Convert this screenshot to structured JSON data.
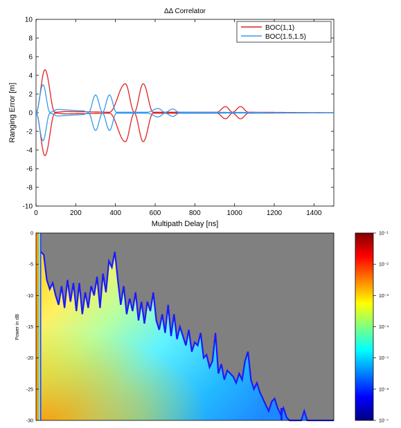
{
  "chart_data": [
    {
      "type": "line",
      "title": "ΔΔ Correlator",
      "xlabel": "Multipath Delay [ns]",
      "ylabel": "Ranging Error [m]",
      "xlim": [
        0,
        1500
      ],
      "ylim": [
        -10,
        10
      ],
      "xticks": [
        0,
        200,
        400,
        600,
        800,
        1000,
        1200,
        1400
      ],
      "yticks": [
        -10,
        -8,
        -6,
        -4,
        -2,
        0,
        2,
        4,
        6,
        8,
        10
      ],
      "grid": false,
      "legend_position": "top-right",
      "series": [
        {
          "name": "BOC(1,1)",
          "color": "#e02020",
          "envelope": [
            {
              "x": 0,
              "y": 0
            },
            {
              "x": 45,
              "y": 4.6
            },
            {
              "x": 95,
              "y": 0.05
            },
            {
              "x": 150,
              "y": 0.12
            },
            {
              "x": 240,
              "y": 0.1
            },
            {
              "x": 300,
              "y": 0.08
            },
            {
              "x": 370,
              "y": 0.05
            },
            {
              "x": 450,
              "y": 3.1
            },
            {
              "x": 495,
              "y": 0.05
            },
            {
              "x": 540,
              "y": 3.1
            },
            {
              "x": 590,
              "y": 0.05
            },
            {
              "x": 650,
              "y": 0.05
            },
            {
              "x": 910,
              "y": 0.05
            },
            {
              "x": 955,
              "y": 0.65
            },
            {
              "x": 990,
              "y": 0.05
            },
            {
              "x": 1030,
              "y": 0.65
            },
            {
              "x": 1070,
              "y": 0.05
            },
            {
              "x": 1500,
              "y": 0
            }
          ]
        },
        {
          "name": "BOC(1.5,1.5)",
          "color": "#3399ee",
          "envelope": [
            {
              "x": 0,
              "y": 0
            },
            {
              "x": 35,
              "y": 3.0
            },
            {
              "x": 70,
              "y": 0.05
            },
            {
              "x": 110,
              "y": 0.35
            },
            {
              "x": 150,
              "y": 0.3
            },
            {
              "x": 190,
              "y": 0.25
            },
            {
              "x": 235,
              "y": 0.2
            },
            {
              "x": 265,
              "y": 0.05
            },
            {
              "x": 300,
              "y": 1.9
            },
            {
              "x": 335,
              "y": 0.05
            },
            {
              "x": 370,
              "y": 1.9
            },
            {
              "x": 405,
              "y": 0.05
            },
            {
              "x": 560,
              "y": 0.05
            },
            {
              "x": 615,
              "y": 0.45
            },
            {
              "x": 650,
              "y": 0.05
            },
            {
              "x": 690,
              "y": 0.4
            },
            {
              "x": 720,
              "y": 0.05
            },
            {
              "x": 1500,
              "y": 0
            }
          ]
        }
      ]
    },
    {
      "type": "heatmap",
      "ylabel": "Power in dB",
      "ylim": [
        -30,
        0
      ],
      "yticks": [
        0,
        -5,
        -10,
        -15,
        -20,
        -25,
        -30
      ],
      "background_color": "#808080",
      "edge_color": "#1a1aff",
      "top_edge_db": [
        -3.0,
        -3.5,
        -7.5,
        -9.0,
        -8.0,
        -10.0,
        -11.5,
        -8.5,
        -12.0,
        -7.5,
        -11.0,
        -8.0,
        -12.5,
        -8.0,
        -13.0,
        -9.5,
        -12.0,
        -8.5,
        -10.0,
        -7.0,
        -12.0,
        -6.5,
        -9.5,
        -4.5,
        -5.5,
        -3.0,
        -7.5,
        -11.5,
        -8.5,
        -13.0,
        -10.5,
        -12.5,
        -9.5,
        -14.0,
        -11.0,
        -14.5,
        -11.0,
        -12.5,
        -9.5,
        -14.0,
        -15.5,
        -13.0,
        -16.0,
        -11.5,
        -16.5,
        -13.0,
        -17.0,
        -15.0,
        -16.5,
        -18.0,
        -15.5,
        -19.0,
        -17.5,
        -18.0,
        -16.0,
        -20.0,
        -19.5,
        -21.5,
        -20.5,
        -16.0,
        -22.5,
        -21.0,
        -23.5,
        -22.0,
        -22.5,
        -23.0,
        -24.0,
        -22.5,
        -23.5,
        -20.5,
        -19.0,
        -23.5,
        -25.0,
        -24.0,
        -25.5,
        -26.5,
        -27.5,
        -28.5,
        -27.0,
        -26.5,
        -28.0,
        -29.0,
        -28.0,
        -29.5,
        -30.0,
        -30.0,
        -30.0,
        -30.0,
        -30.0,
        -28.5,
        -30.0,
        -30.0,
        -30.0,
        -30.0,
        -30.0,
        -30.0,
        -30.0,
        -30.0,
        -30.0,
        -30.0
      ],
      "colorbar": {
        "tick_labels": [
          "10⁻¹",
          "10⁻²",
          "10⁻³",
          "10⁻⁴",
          "10⁻⁵",
          "10⁻⁶",
          "10⁻⁷"
        ],
        "colors": [
          "#800000",
          "#ff0000",
          "#ff8000",
          "#ffff00",
          "#80ff80",
          "#00ffff",
          "#0080ff",
          "#0000ff",
          "#000080"
        ]
      }
    }
  ]
}
